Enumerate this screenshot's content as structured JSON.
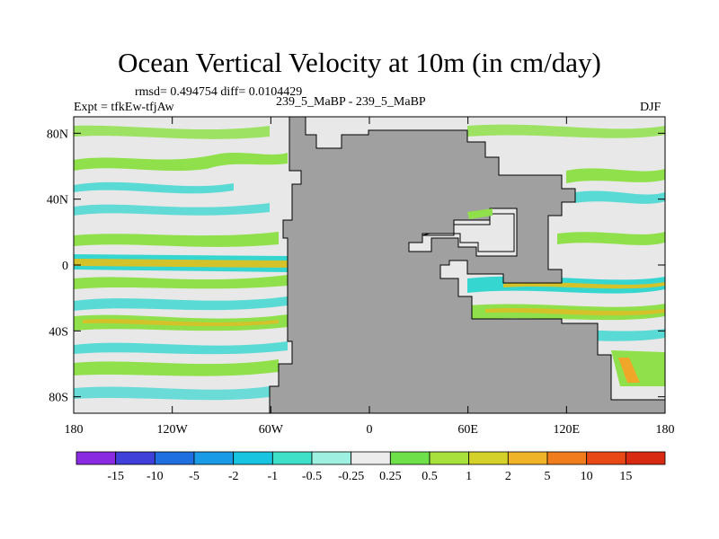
{
  "title": "Ocean Vertical Velocity at 10m (in cm/day)",
  "rmsd_line": "rmsd= 0.494754  diff= 0.0104429",
  "expt_line": "Expt = tfkEw-tfjAw",
  "center_label": "239_5_MaBP - 239_5_MaBP",
  "season": "DJF",
  "x_ticks": [
    "180",
    "120W",
    "60W",
    "0",
    "60E",
    "120E",
    "180"
  ],
  "x_tick_values": [
    -180,
    -120,
    -60,
    0,
    60,
    120,
    180
  ],
  "y_ticks": [
    "80N",
    "40N",
    "0",
    "40S",
    "80S"
  ],
  "y_tick_values": [
    80,
    40,
    0,
    -40,
    -80
  ],
  "colorbar": {
    "labels": [
      "-15",
      "-10",
      "-5",
      "-2",
      "-1",
      "-0.5",
      "-0.25",
      "0.25",
      "0.5",
      "1",
      "2",
      "5",
      "10",
      "15"
    ],
    "colors": [
      "#8a2be2",
      "#3f3fd9",
      "#1f6fe0",
      "#1a9be6",
      "#19c4e0",
      "#3fe0c8",
      "#9ef0e0",
      "#ececec",
      "#6ee04a",
      "#a8e03c",
      "#d4d22a",
      "#f0b428",
      "#f07c1e",
      "#e84816",
      "#d82a10"
    ]
  },
  "colors": {
    "land": "#a0a0a0",
    "ocean_background": "#e8e8e8"
  }
}
